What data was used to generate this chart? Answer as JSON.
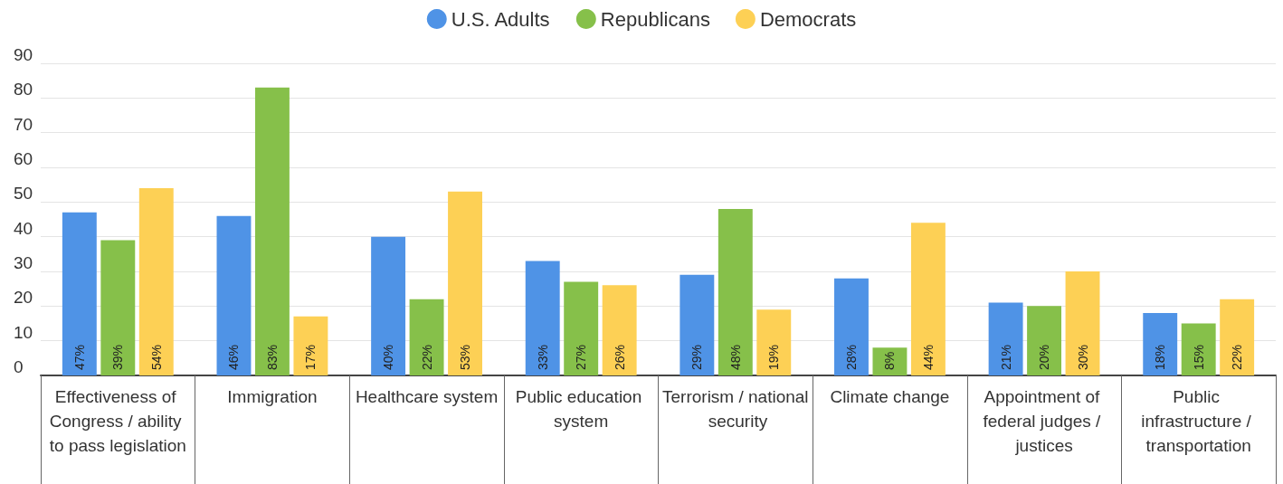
{
  "chart_data": {
    "type": "bar",
    "categories": [
      "Effectiveness of Congress / ability to pass legislation",
      "Immigration",
      "Healthcare system",
      "Public education system",
      "Terrorism / national security",
      "Climate change",
      "Appointment of federal judges / justices",
      "Public infrastructure / transportation"
    ],
    "series": [
      {
        "name": "U.S. Adults",
        "color": "#4f93e6",
        "values": [
          47,
          46,
          40,
          33,
          29,
          28,
          21,
          18
        ],
        "value_labels": [
          "47%",
          "46%",
          "40%",
          "33%",
          "29%",
          "28%",
          "21%",
          "18%"
        ]
      },
      {
        "name": "Republicans",
        "color": "#86c04a",
        "values": [
          39,
          83,
          22,
          27,
          48,
          8,
          20,
          15
        ],
        "value_labels": [
          "39%",
          "83%",
          "22%",
          "27%",
          "48%",
          "8%",
          "20%",
          "15%"
        ]
      },
      {
        "name": "Democrats",
        "color": "#fdd055",
        "values": [
          54,
          17,
          53,
          26,
          19,
          44,
          30,
          22
        ],
        "value_labels": [
          "54%",
          "17%",
          "53%",
          "26%",
          "19%",
          "44%",
          "30%",
          "22%"
        ]
      }
    ],
    "ylim": [
      0,
      90
    ],
    "yticks": [
      0,
      10,
      20,
      30,
      40,
      50,
      60,
      70,
      80,
      90
    ],
    "grid": "y",
    "legend": "top"
  }
}
